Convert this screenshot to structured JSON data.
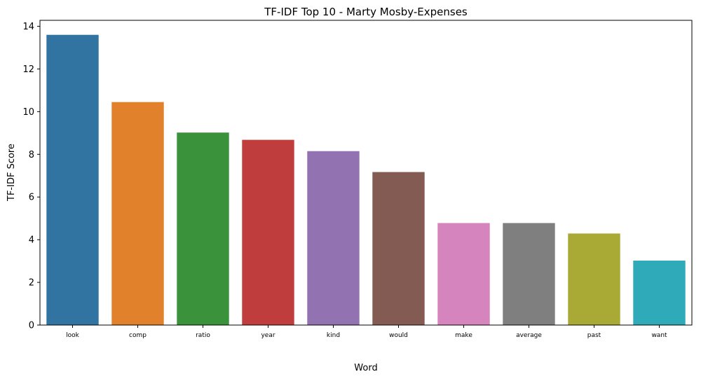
{
  "chart_data": {
    "type": "bar",
    "title": "TF-IDF Top 10 - Marty Mosby-Expenses",
    "xlabel": "Word",
    "ylabel": "TF-IDF Score",
    "categories": [
      "look",
      "comp",
      "ratio",
      "year",
      "kind",
      "would",
      "make",
      "average",
      "past",
      "want"
    ],
    "values": [
      13.6,
      10.45,
      9.02,
      8.68,
      8.15,
      7.17,
      4.78,
      4.78,
      4.29,
      3.02
    ],
    "colors": [
      "#3274a1",
      "#e1812c",
      "#3a923a",
      "#c03d3e",
      "#9372b2",
      "#845b53",
      "#d684bd",
      "#7f7f7f",
      "#a9aa35",
      "#2eaab8"
    ],
    "ylim": [
      0,
      14.28
    ],
    "yticks": [
      "0",
      "2",
      "4",
      "6",
      "8",
      "10",
      "12",
      "14"
    ],
    "grid": false
  }
}
